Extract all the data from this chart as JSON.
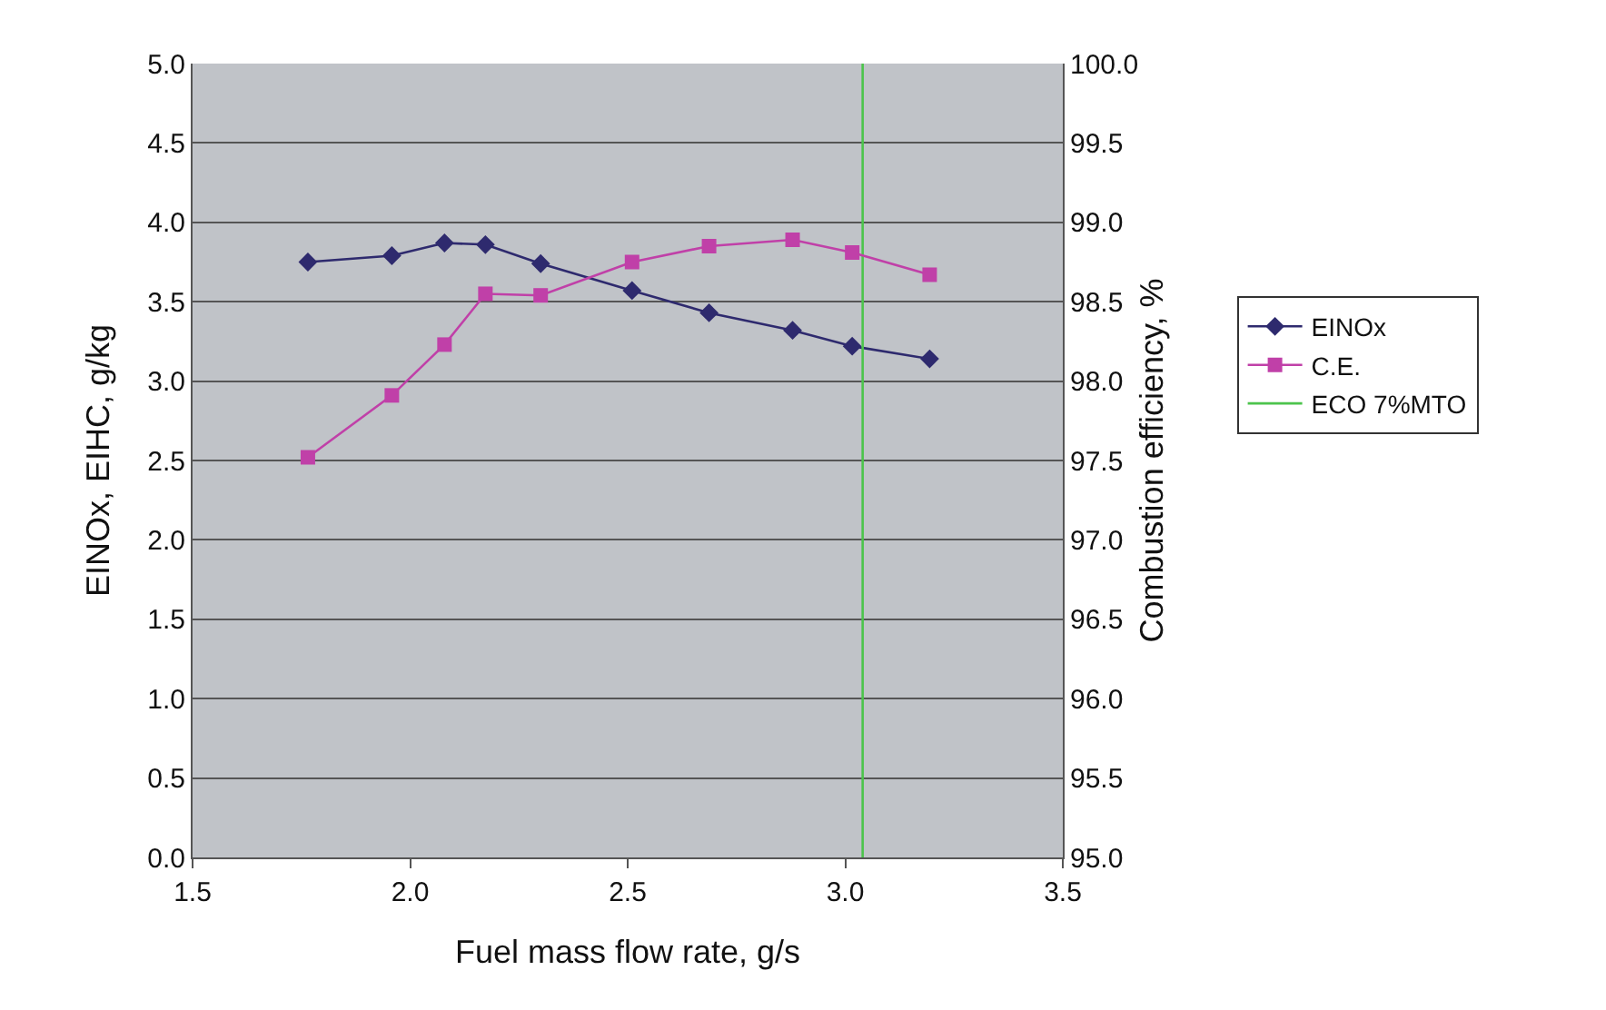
{
  "chart_data": {
    "type": "line",
    "xlabel": "Fuel mass flow rate, g/s",
    "ylabel": "EINOx, EIHC, g/kg",
    "y2label": "Combustion efficiency, %",
    "x": [
      1.765,
      1.958,
      2.079,
      2.173,
      2.3,
      2.51,
      2.687,
      2.879,
      3.016,
      3.194
    ],
    "series": [
      {
        "name": "EINOx",
        "color": "#2e2a6e",
        "marker": "diamond",
        "values": [
          3.75,
          3.79,
          3.87,
          3.86,
          3.74,
          3.57,
          3.43,
          3.32,
          3.22,
          3.14
        ]
      },
      {
        "name": "C.E.",
        "color": "#c040a8",
        "marker": "square",
        "axis": "y2",
        "values": [
          97.52,
          97.91,
          98.23,
          98.55,
          98.54,
          98.75,
          98.85,
          98.89,
          98.81,
          98.67
        ]
      },
      {
        "name": "ECO 7%MTO",
        "type": "line",
        "color": "#4cc44c",
        "marker": "none",
        "x": [
          3.04,
          3.04
        ],
        "values": [
          0,
          5
        ]
      }
    ],
    "xlim": [
      1.5,
      3.5
    ],
    "xticks": [
      {
        "value": 1.5,
        "label": "1.5"
      },
      {
        "value": 2.0,
        "label": "2.0"
      },
      {
        "value": 2.5,
        "label": "2.5"
      },
      {
        "value": 3.0,
        "label": "3.0"
      },
      {
        "value": 3.5,
        "label": "3.5"
      }
    ],
    "ylim": [
      0,
      5
    ],
    "yticks": [
      {
        "value": 0,
        "label": "0.0"
      },
      {
        "value": 0.5,
        "label": "0.5"
      },
      {
        "value": 1,
        "label": "1.0"
      },
      {
        "value": 1.5,
        "label": "1.5"
      },
      {
        "value": 2,
        "label": "2.0"
      },
      {
        "value": 2.5,
        "label": "2.5"
      },
      {
        "value": 3,
        "label": "3.0"
      },
      {
        "value": 3.5,
        "label": "3.5"
      },
      {
        "value": 4,
        "label": "4.0"
      },
      {
        "value": 4.5,
        "label": "4.5"
      },
      {
        "value": 5,
        "label": "5.0"
      }
    ],
    "y2lim": [
      95,
      100
    ],
    "y2ticks": [
      {
        "value": 95,
        "label": "95.0"
      },
      {
        "value": 95.5,
        "label": "95.5"
      },
      {
        "value": 96,
        "label": "96.0"
      },
      {
        "value": 96.5,
        "label": "96.5"
      },
      {
        "value": 97,
        "label": "97.0"
      },
      {
        "value": 97.5,
        "label": "97.5"
      },
      {
        "value": 98,
        "label": "98.0"
      },
      {
        "value": 98.5,
        "label": "98.5"
      },
      {
        "value": 99,
        "label": "99.0"
      },
      {
        "value": 99.5,
        "label": "99.5"
      },
      {
        "value": 100,
        "label": "100.0"
      }
    ],
    "grid": "y",
    "legend": "right",
    "line_style": "solid"
  }
}
